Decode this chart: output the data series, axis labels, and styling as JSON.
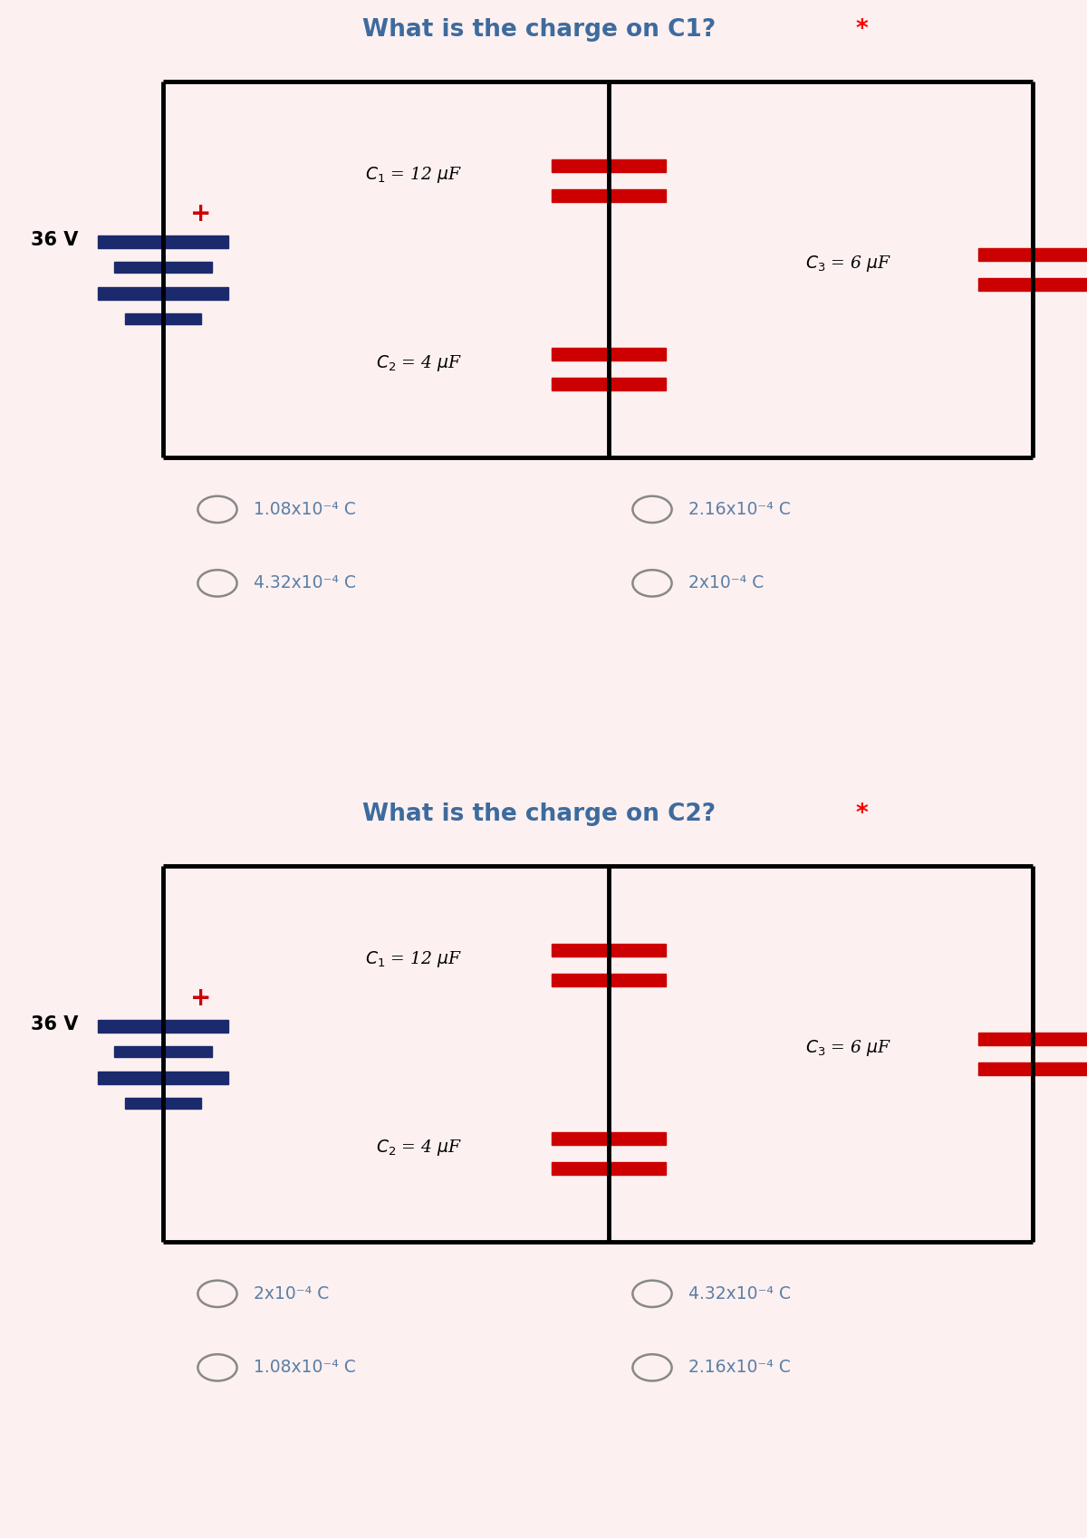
{
  "bg_color": "#fdf0f0",
  "title_color": "#3d6b9e",
  "option_color": "#5a7fa8",
  "circuit_line_color": "#000000",
  "battery_color": "#1a2a6c",
  "capacitor_color": "#cc0000",
  "plus_color": "#cc0000",
  "title1": "What is the charge on C1?",
  "title2": "What is the charge on C2?",
  "q1_options": [
    [
      "1.08x10⁻⁴ C",
      "2.16x10⁻⁴ C"
    ],
    [
      "4.32x10⁻⁴ C",
      "2x10⁻⁴ C"
    ]
  ],
  "q2_options": [
    [
      "2x10⁻⁴ C",
      "4.32x10⁻⁴ C"
    ],
    [
      "1.08x10⁻⁴ C",
      "2.16x10⁻⁴ C"
    ]
  ],
  "voltage_label": "36 V",
  "c1_label": "$\\mathit{C_1}$ = 12 $\\mu$F",
  "c2_label": "$\\mathit{C_2}$ = 4 $\\mu$F",
  "c3_label": "$\\mathit{C_3}$ = 6 $\\mu$F"
}
